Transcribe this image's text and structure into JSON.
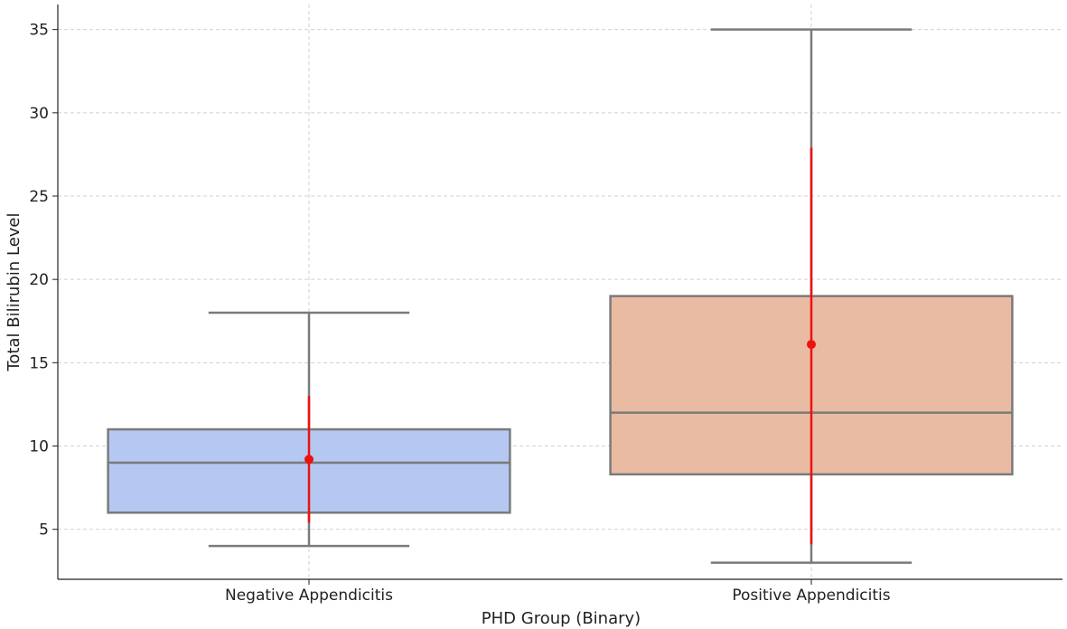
{
  "chart_data": {
    "type": "box",
    "title": "",
    "xlabel": "PHD Group (Binary)",
    "ylabel": "Total Bilirubin Level",
    "ylim": [
      2,
      36.5
    ],
    "yticks": [
      5,
      10,
      15,
      20,
      25,
      30,
      35
    ],
    "grid": true,
    "categories": [
      "Negative Appendicitis",
      "Positive Appendicitis"
    ],
    "boxes": [
      {
        "category": "Negative Appendicitis",
        "whisker_low": 4,
        "q1": 6,
        "median": 9,
        "q3": 11,
        "whisker_high": 18,
        "mean": 9.2,
        "error_low": 5.4,
        "error_high": 13,
        "color": "#b4c8f2"
      },
      {
        "category": "Positive Appendicitis",
        "whisker_low": 3,
        "q1": 8.3,
        "median": 12,
        "q3": 19,
        "whisker_high": 35,
        "mean": 16.1,
        "error_low": 4.1,
        "error_high": 27.9,
        "color": "#eabba3"
      }
    ],
    "colors": {
      "box_edge": "#7a7a7a",
      "mean_marker": "#ee1111",
      "grid": "#d0d0d0",
      "axis": "#222222"
    }
  }
}
